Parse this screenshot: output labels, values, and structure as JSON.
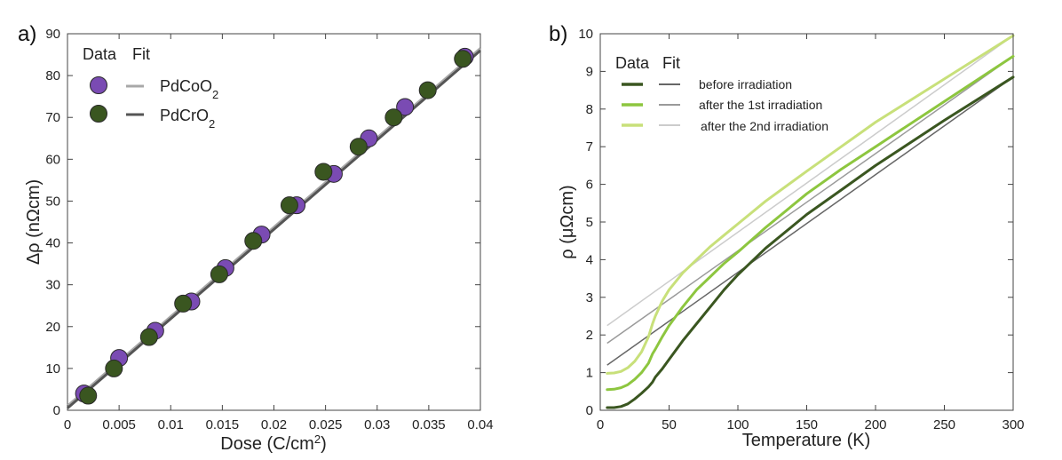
{
  "chart_data": [
    {
      "panel": "a)",
      "type": "scatter",
      "xlabel_parts": {
        "pre": "Dose (C/cm",
        "sup": "2",
        "post": ")"
      },
      "ylabel": "Δρ (nΩcm)",
      "xlim": [
        0,
        0.04
      ],
      "ylim": [
        0,
        90
      ],
      "xticks": [
        0,
        0.005,
        0.01,
        0.015,
        0.02,
        0.025,
        0.03,
        0.035,
        0.04
      ],
      "xtick_labels": [
        "0",
        "0.005",
        "0.01",
        "0.015",
        "0.02",
        "0.025",
        "0.03",
        "0.035",
        "0.04"
      ],
      "yticks": [
        0,
        10,
        20,
        30,
        40,
        50,
        60,
        70,
        80,
        90
      ],
      "ytick_labels": [
        "0",
        "10",
        "20",
        "30",
        "40",
        "50",
        "60",
        "70",
        "80",
        "90"
      ],
      "legend": {
        "header_data": "Data",
        "header_fit": "Fit",
        "entries": [
          {
            "name": "PdCoO",
            "sub": "2",
            "marker_color": "#7a4bb3",
            "line_color": "#a8a8a8"
          },
          {
            "name": "PdCrO",
            "sub": "2",
            "marker_color": "#3a5620",
            "line_color": "#555555"
          }
        ]
      },
      "series": [
        {
          "name": "PdCoO2",
          "color": "#7a4bb3",
          "x": [
            0.0016,
            0.005,
            0.0085,
            0.012,
            0.0153,
            0.0188,
            0.0222,
            0.0258,
            0.0292,
            0.0327,
            0.0385
          ],
          "y": [
            4,
            12.5,
            19,
            26,
            34,
            42,
            49,
            56.5,
            65,
            72.5,
            84.5
          ]
        },
        {
          "name": "PdCrO2",
          "color": "#3a5620",
          "x": [
            0.002,
            0.0045,
            0.0079,
            0.0112,
            0.0147,
            0.018,
            0.0215,
            0.0248,
            0.0282,
            0.0316,
            0.0349,
            0.0383
          ],
          "y": [
            3.5,
            10,
            17.5,
            25.5,
            32.5,
            40.5,
            49,
            57,
            63,
            70,
            76.5,
            84
          ]
        }
      ],
      "fits": [
        {
          "name": "PdCoO2 fit",
          "color": "#a8a8a8",
          "x": [
            0,
            0.04
          ],
          "y": [
            1.0,
            86.5
          ]
        },
        {
          "name": "PdCrO2 fit",
          "color": "#555555",
          "x": [
            0,
            0.04
          ],
          "y": [
            0.5,
            86.0
          ]
        }
      ]
    },
    {
      "panel": "b)",
      "type": "line",
      "xlabel": "Temperature (K)",
      "ylabel": "ρ (μΩcm)",
      "xlim": [
        0,
        300
      ],
      "ylim": [
        0,
        10
      ],
      "xticks": [
        0,
        50,
        100,
        150,
        200,
        250,
        300
      ],
      "xtick_labels": [
        "0",
        "50",
        "100",
        "150",
        "200",
        "250",
        "300"
      ],
      "yticks": [
        0,
        1,
        2,
        3,
        4,
        5,
        6,
        7,
        8,
        9,
        10
      ],
      "ytick_labels": [
        "0",
        "1",
        "2",
        "3",
        "4",
        "5",
        "6",
        "7",
        "8",
        "9",
        "10"
      ],
      "legend": {
        "header_data": "Data",
        "header_fit": "Fit",
        "entries": [
          {
            "name": "before irradiation",
            "data_color": "#3a5620",
            "fit_color": "#666666"
          },
          {
            "name": "after the 1st irradiation",
            "data_color": "#8dc63f",
            "fit_color": "#9a9a9a"
          },
          {
            "name": "after the 2nd irradiation",
            "data_color": "#c8e07a",
            "fit_color": "#cccccc"
          }
        ]
      },
      "series": [
        {
          "name": "before irradiation",
          "color": "#3a5620",
          "x": [
            5,
            10,
            15,
            20,
            25,
            30,
            35,
            38,
            40,
            45,
            50,
            60,
            70,
            80,
            90,
            100,
            120,
            150,
            175,
            200,
            250,
            300
          ],
          "y": [
            0.07,
            0.07,
            0.1,
            0.17,
            0.3,
            0.45,
            0.62,
            0.75,
            0.88,
            1.1,
            1.35,
            1.85,
            2.3,
            2.75,
            3.2,
            3.6,
            4.3,
            5.2,
            5.85,
            6.5,
            7.7,
            8.85
          ]
        },
        {
          "name": "after the 1st irradiation",
          "color": "#8dc63f",
          "x": [
            5,
            10,
            15,
            20,
            25,
            30,
            35,
            38,
            40,
            45,
            50,
            60,
            70,
            80,
            90,
            100,
            120,
            150,
            175,
            200,
            250,
            300
          ],
          "y": [
            0.55,
            0.56,
            0.6,
            0.68,
            0.82,
            1.0,
            1.25,
            1.5,
            1.62,
            1.95,
            2.25,
            2.75,
            3.2,
            3.55,
            3.9,
            4.2,
            4.85,
            5.75,
            6.4,
            7.0,
            8.2,
            9.4
          ]
        },
        {
          "name": "after the 2nd irradiation",
          "color": "#c8e07a",
          "x": [
            5,
            10,
            15,
            20,
            25,
            30,
            35,
            38,
            40,
            45,
            50,
            60,
            70,
            80,
            90,
            100,
            120,
            150,
            175,
            200,
            250,
            300
          ],
          "y": [
            0.98,
            0.99,
            1.03,
            1.13,
            1.3,
            1.55,
            1.95,
            2.3,
            2.5,
            2.9,
            3.2,
            3.65,
            4.0,
            4.35,
            4.65,
            4.95,
            5.55,
            6.35,
            7.0,
            7.65,
            8.8,
            9.95
          ]
        }
      ],
      "fits": [
        {
          "name": "before irradiation fit",
          "color": "#666666",
          "x": [
            5,
            300
          ],
          "y": [
            1.2,
            8.85
          ]
        },
        {
          "name": "after the 1st irradiation fit",
          "color": "#9a9a9a",
          "x": [
            5,
            300
          ],
          "y": [
            1.78,
            9.4
          ]
        },
        {
          "name": "after the 2nd irradiation fit",
          "color": "#cccccc",
          "x": [
            5,
            300
          ],
          "y": [
            2.25,
            9.95
          ]
        }
      ]
    }
  ]
}
